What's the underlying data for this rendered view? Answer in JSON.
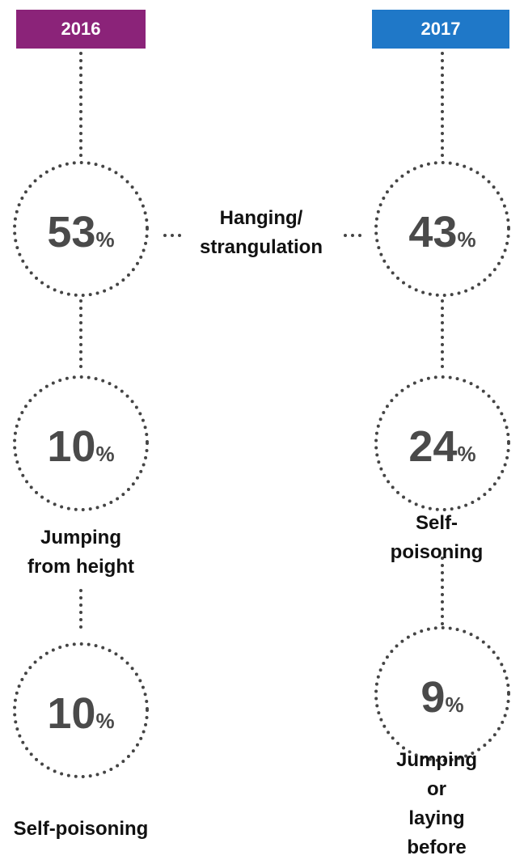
{
  "shared_label": "Hanging/\nstrangulation",
  "columns": [
    {
      "year": "2016",
      "color": "#8b2379",
      "items": [
        {
          "value": "53",
          "unit": "%"
        },
        {
          "value": "10",
          "unit": "%",
          "label": "Jumping\nfrom height"
        },
        {
          "value": "10",
          "unit": "%",
          "label": "Self-poisoning"
        }
      ]
    },
    {
      "year": "2017",
      "color": "#1f78c8",
      "items": [
        {
          "value": "43",
          "unit": "%"
        },
        {
          "value": "24",
          "unit": "%",
          "label": "Self-poisoning"
        },
        {
          "value": "9",
          "unit": "%",
          "label": "Jumping or\nlaying before\na train"
        }
      ]
    }
  ]
}
